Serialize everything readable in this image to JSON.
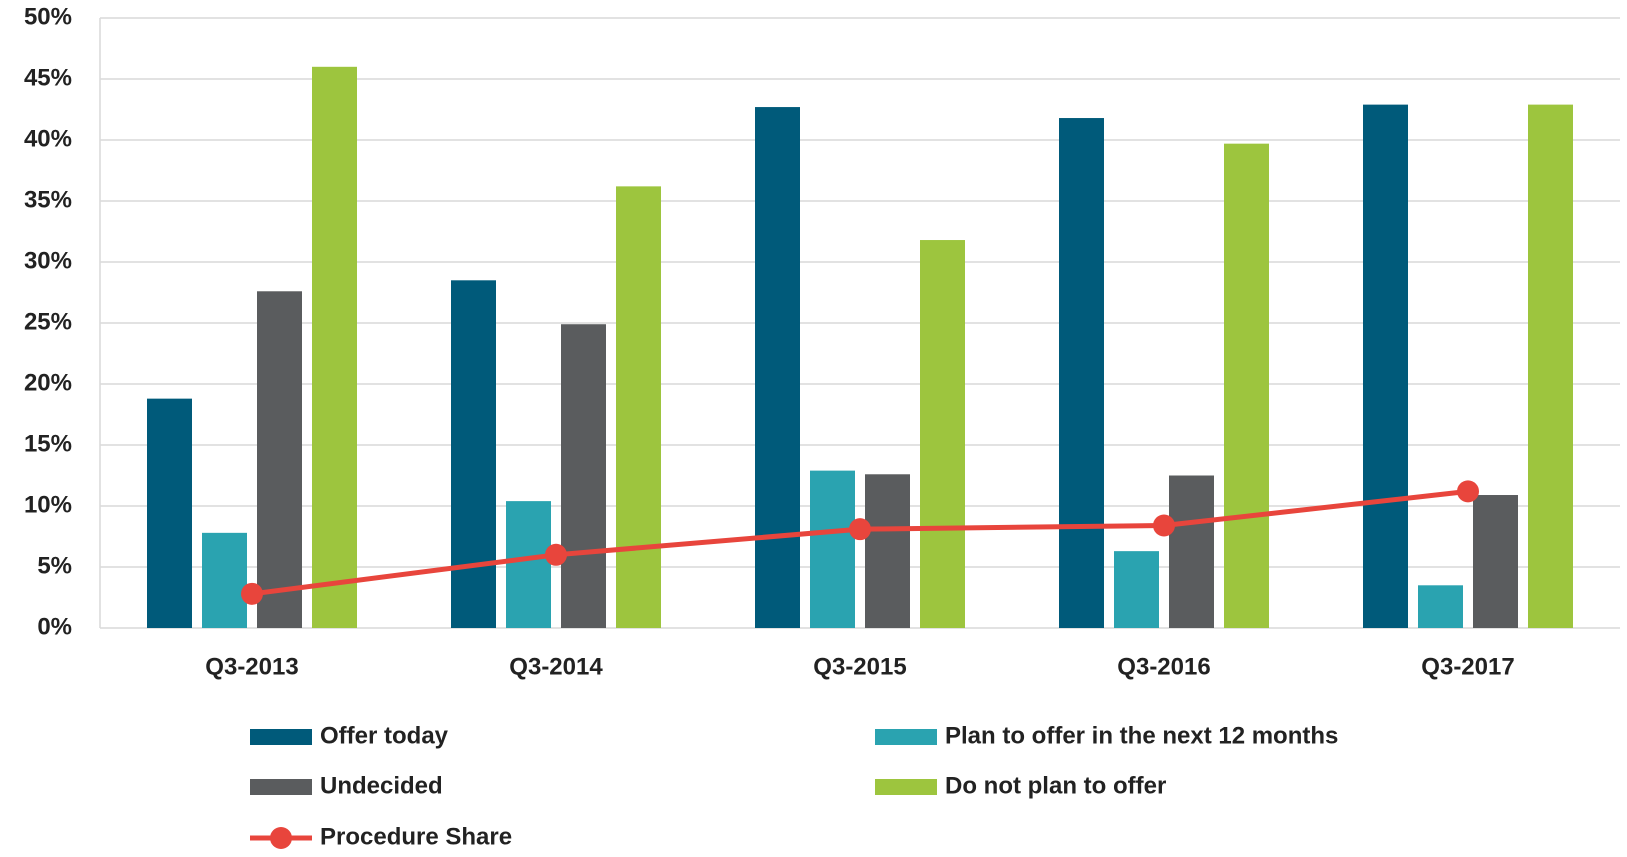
{
  "chart_data": {
    "type": "bar",
    "categories": [
      "Q3-2013",
      "Q3-2014",
      "Q3-2015",
      "Q3-2016",
      "Q3-2017"
    ],
    "series": [
      {
        "name": "Offer today",
        "color": "#005a7a",
        "values": [
          18.8,
          28.5,
          42.7,
          41.8,
          42.9
        ]
      },
      {
        "name": "Plan to offer in the next 12 months",
        "color": "#2aa3b0",
        "values": [
          7.8,
          10.4,
          12.9,
          6.3,
          3.5
        ]
      },
      {
        "name": "Undecided",
        "color": "#5a5c5e",
        "values": [
          27.6,
          24.9,
          12.6,
          12.5,
          10.9
        ]
      },
      {
        "name": "Do not plan to offer",
        "color": "#9dc53e",
        "values": [
          46,
          36.2,
          31.8,
          39.7,
          42.9
        ]
      },
      {
        "name": "Procedure Share",
        "color": "#e8453c",
        "type": "line",
        "values": [
          2.8,
          6.0,
          8.1,
          8.4,
          11.2
        ]
      }
    ],
    "ylim": [
      0,
      50
    ],
    "yticks": [
      {
        "value": 0,
        "label": "0%"
      },
      {
        "value": 5,
        "label": "5%"
      },
      {
        "value": 10,
        "label": "10%"
      },
      {
        "value": 15,
        "label": "15%"
      },
      {
        "value": 20,
        "label": "20%"
      },
      {
        "value": 25,
        "label": "25%"
      },
      {
        "value": 30,
        "label": "30%"
      },
      {
        "value": 35,
        "label": "35%"
      },
      {
        "value": 40,
        "label": "40%"
      },
      {
        "value": 45,
        "label": "45%"
      },
      {
        "value": 50,
        "label": "50%"
      }
    ],
    "grid": true,
    "legend": "bottom"
  }
}
